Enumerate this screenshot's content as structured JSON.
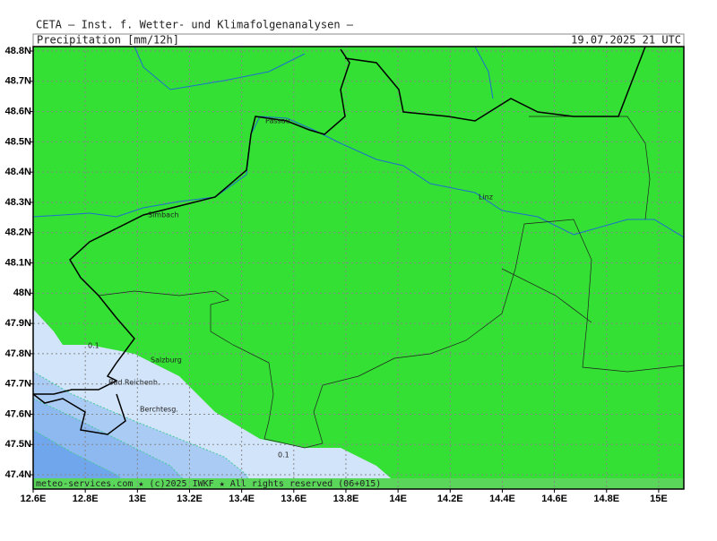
{
  "header": {
    "institute": "CETA — Inst. f. Wetter- und Klimafolgenanalysen —",
    "title": "Precipitation [mm/12h]",
    "valid_time": "19.07.2025 21 UTC"
  },
  "footer": "meteo-services.com ★ (c)2025 IWKF ★ All rights reserved (06+015)",
  "map": {
    "lon_ticks": [
      {
        "value": 12.6,
        "label": "12.6E"
      },
      {
        "value": 12.8,
        "label": "12.8E"
      },
      {
        "value": 13,
        "label": "13E"
      },
      {
        "value": 13.2,
        "label": "13.2E"
      },
      {
        "value": 13.4,
        "label": "13.4E"
      },
      {
        "value": 13.6,
        "label": "13.6E"
      },
      {
        "value": 13.8,
        "label": "13.8E"
      },
      {
        "value": 14,
        "label": "14E"
      },
      {
        "value": 14.2,
        "label": "14.2E"
      },
      {
        "value": 14.4,
        "label": "14.4E"
      },
      {
        "value": 14.6,
        "label": "14.6E"
      },
      {
        "value": 14.8,
        "label": "14.8E"
      },
      {
        "value": 15,
        "label": "15E"
      }
    ],
    "lat_ticks": [
      {
        "value": 48.8,
        "label": "48.8N"
      },
      {
        "value": 48.7,
        "label": "48.7N"
      },
      {
        "value": 48.6,
        "label": "48.6N"
      },
      {
        "value": 48.5,
        "label": "48.5N"
      },
      {
        "value": 48.4,
        "label": "48.4N"
      },
      {
        "value": 48.3,
        "label": "48.3N"
      },
      {
        "value": 48.2,
        "label": "48.2N"
      },
      {
        "value": 48.1,
        "label": "48.1N"
      },
      {
        "value": 48,
        "label": "48N"
      },
      {
        "value": 47.9,
        "label": "47.9N"
      },
      {
        "value": 47.8,
        "label": "47.8N"
      },
      {
        "value": 47.7,
        "label": "47.7N"
      },
      {
        "value": 47.6,
        "label": "47.6N"
      },
      {
        "value": 47.5,
        "label": "47.5N"
      },
      {
        "value": 47.4,
        "label": "47.4N"
      }
    ],
    "cities": [
      "Passau",
      "Simbach",
      "Linz",
      "Salzburg",
      "Bad Reichenh.",
      "Berchtesg."
    ],
    "contour_labels": [
      0.1,
      0.1
    ]
  }
}
